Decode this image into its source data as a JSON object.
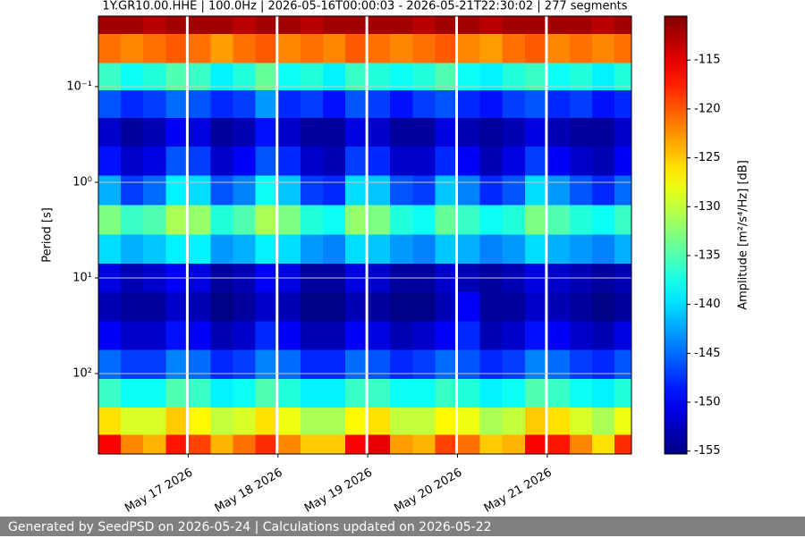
{
  "chart_data": {
    "type": "heatmap",
    "title": "1Y.GR10.00.HHE | 100.0Hz | 2026-05-16T00:00:03 - 2026-05-21T22:30:02 | 277 segments",
    "y_label": "Period [s]",
    "colorbar_label": "Amplitude [m²/s⁴/Hz] [dB]",
    "colormap": "jet",
    "y_log": true,
    "y_inverted": true,
    "grid": true,
    "xlim": [
      "2026-05-16T00:00:03",
      "2026-05-21T22:30:02"
    ],
    "xticks": [
      {
        "value": "2026-05-17",
        "label": "May 17 2026"
      },
      {
        "value": "2026-05-18",
        "label": "May 18 2026"
      },
      {
        "value": "2026-05-19",
        "label": "May 19 2026"
      },
      {
        "value": "2026-05-20",
        "label": "May 20 2026"
      },
      {
        "value": "2026-05-21",
        "label": "May 21 2026"
      }
    ],
    "ylim": [
      0.0183,
      693
    ],
    "yticks": [
      {
        "value": 0.1,
        "label": "10⁻¹"
      },
      {
        "value": 1,
        "label": "10⁰"
      },
      {
        "value": 10,
        "label": "10¹"
      },
      {
        "value": 100,
        "label": "10²"
      }
    ],
    "clim": [
      -155.3,
      -110.5
    ],
    "cticks": [
      -115,
      -120,
      -125,
      -130,
      -135,
      -140,
      -145,
      -150,
      -155
    ],
    "x": [
      "2026-05-16T03:00",
      "2026-05-16T09:00",
      "2026-05-16T15:00",
      "2026-05-16T21:00",
      "2026-05-17T03:00",
      "2026-05-17T09:00",
      "2026-05-17T15:00",
      "2026-05-17T21:00",
      "2026-05-18T03:00",
      "2026-05-18T09:00",
      "2026-05-18T15:00",
      "2026-05-18T21:00",
      "2026-05-19T03:00",
      "2026-05-19T09:00",
      "2026-05-19T15:00",
      "2026-05-19T21:00",
      "2026-05-20T03:00",
      "2026-05-20T09:00",
      "2026-05-20T15:00",
      "2026-05-20T21:00",
      "2026-05-21T03:00",
      "2026-05-21T09:00",
      "2026-05-21T15:00",
      "2026-05-21T21:00"
    ],
    "periods": [
      0.02,
      0.04,
      0.08,
      0.15,
      0.3,
      0.6,
      1.2,
      2.5,
      5,
      10,
      20,
      40,
      80,
      160,
      320,
      600
    ],
    "values": [
      [
        -112,
        -112,
        -113,
        -112,
        -112,
        -112,
        -113,
        -112,
        -112,
        -113,
        -112,
        -112,
        -112,
        -112,
        -113,
        -112,
        -112,
        -113,
        -112,
        -112,
        -112,
        -112,
        -113,
        -112
      ],
      [
        -121,
        -122,
        -121,
        -120,
        -121,
        -123,
        -121,
        -120,
        -122,
        -121,
        -122,
        -120,
        -121,
        -122,
        -121,
        -120,
        -122,
        -123,
        -121,
        -120,
        -122,
        -121,
        -122,
        -121
      ],
      [
        -136,
        -138,
        -137,
        -135,
        -136,
        -139,
        -137,
        -134,
        -138,
        -137,
        -139,
        -136,
        -137,
        -138,
        -137,
        -135,
        -138,
        -139,
        -137,
        -136,
        -138,
        -137,
        -139,
        -137
      ],
      [
        -146,
        -148,
        -147,
        -145,
        -146,
        -148,
        -147,
        -143,
        -148,
        -147,
        -149,
        -146,
        -147,
        -149,
        -147,
        -146,
        -148,
        -149,
        -147,
        -146,
        -148,
        -147,
        -149,
        -148
      ],
      [
        -152,
        -154,
        -153,
        -150,
        -151,
        -154,
        -153,
        -149,
        -152,
        -154,
        -154,
        -151,
        -152,
        -154,
        -154,
        -151,
        -153,
        -154,
        -153,
        -151,
        -153,
        -154,
        -154,
        -152
      ],
      [
        -149,
        -152,
        -151,
        -146,
        -147,
        -152,
        -150,
        -146,
        -148,
        -152,
        -153,
        -147,
        -148,
        -152,
        -152,
        -148,
        -150,
        -153,
        -151,
        -147,
        -150,
        -152,
        -153,
        -150
      ],
      [
        -142,
        -147,
        -145,
        -139,
        -140,
        -146,
        -144,
        -138,
        -141,
        -147,
        -148,
        -140,
        -141,
        -146,
        -147,
        -141,
        -144,
        -148,
        -146,
        -140,
        -143,
        -146,
        -148,
        -145
      ],
      [
        -133,
        -136,
        -135,
        -131,
        -132,
        -137,
        -135,
        -131,
        -133,
        -137,
        -138,
        -132,
        -133,
        -137,
        -138,
        -134,
        -136,
        -138,
        -137,
        -133,
        -135,
        -137,
        -138,
        -136
      ],
      [
        -140,
        -142,
        -141,
        -139,
        -139,
        -143,
        -142,
        -139,
        -140,
        -143,
        -144,
        -140,
        -141,
        -143,
        -144,
        -141,
        -142,
        -144,
        -143,
        -140,
        -142,
        -143,
        -144,
        -142
      ],
      [
        -151,
        -153,
        -152,
        -150,
        -151,
        -154,
        -153,
        -150,
        -151,
        -154,
        -154,
        -151,
        -152,
        -154,
        -154,
        -152,
        -153,
        -154,
        -153,
        -151,
        -152,
        -153,
        -154,
        -153
      ],
      [
        -153,
        -154,
        -154,
        -152,
        -153,
        -155,
        -154,
        -152,
        -153,
        -155,
        -155,
        -153,
        -154,
        -155,
        -155,
        -153,
        -150,
        -154,
        -154,
        -152,
        -153,
        -154,
        -155,
        -154
      ],
      [
        -150,
        -152,
        -152,
        -149,
        -150,
        -153,
        -152,
        -148,
        -150,
        -153,
        -153,
        -150,
        -151,
        -153,
        -152,
        -150,
        -148,
        -153,
        -152,
        -149,
        -150,
        -152,
        -153,
        -151
      ],
      [
        -145,
        -147,
        -147,
        -144,
        -145,
        -148,
        -147,
        -144,
        -145,
        -148,
        -148,
        -145,
        -146,
        -148,
        -147,
        -145,
        -146,
        -148,
        -147,
        -144,
        -145,
        -147,
        -148,
        -146
      ],
      [
        -136,
        -138,
        -138,
        -135,
        -136,
        -139,
        -138,
        -135,
        -137,
        -139,
        -139,
        -136,
        -136,
        -138,
        -138,
        -136,
        -137,
        -139,
        -138,
        -135,
        -136,
        -138,
        -139,
        -137
      ],
      [
        -126,
        -129,
        -129,
        -125,
        -127,
        -130,
        -129,
        -126,
        -128,
        -131,
        -131,
        -127,
        -126,
        -130,
        -130,
        -127,
        -128,
        -131,
        -130,
        -125,
        -126,
        -129,
        -131,
        -128
      ],
      [
        -116,
        -122,
        -124,
        -117,
        -119,
        -124,
        -121,
        -118,
        -122,
        -125,
        -125,
        -116,
        -115,
        -123,
        -124,
        -119,
        -121,
        -125,
        -124,
        -116,
        -117,
        -122,
        -126,
        -118
      ]
    ]
  },
  "footer": "Generated by SeedPSD on 2026-05-24 | Calculations updated on 2026-05-22"
}
